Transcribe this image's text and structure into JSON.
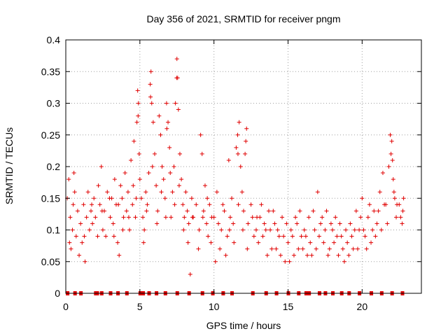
{
  "chart_data": {
    "type": "scatter",
    "title": "Day 356 of 2021, SRMTID for receiver pngm",
    "xlabel": "GPS time / hours",
    "ylabel": "SRMTID / TECUs",
    "xlim": [
      0,
      24
    ],
    "ylim": [
      0,
      0.4
    ],
    "x_ticks": [
      "0",
      "5",
      "10",
      "15",
      "20"
    ],
    "x_tick_values": [
      0,
      5,
      10,
      15,
      20
    ],
    "y_ticks": [
      "0",
      "0.05",
      "0.1",
      "0.15",
      "0.2",
      "0.25",
      "0.3",
      "0.35",
      "0.4"
    ],
    "y_tick_values": [
      0,
      0.05,
      0.1,
      0.15,
      0.2,
      0.25,
      0.3,
      0.35,
      0.4
    ],
    "grid": true,
    "marker": "+",
    "color": "#e00000",
    "series": [
      {
        "name": "SRMTID",
        "points": [
          [
            0.1,
            0.15
          ],
          [
            0.2,
            0.18
          ],
          [
            0.3,
            0.12
          ],
          [
            0.35,
            0.07
          ],
          [
            0.45,
            0.1
          ],
          [
            0.5,
            0.14
          ],
          [
            0.6,
            0.16
          ],
          [
            0.7,
            0.09
          ],
          [
            0.8,
            0.13
          ],
          [
            1.0,
            0.11
          ],
          [
            1.1,
            0.08
          ],
          [
            1.2,
            0.14
          ],
          [
            1.3,
            0.05
          ],
          [
            1.4,
            0.12
          ],
          [
            1.5,
            0.16
          ],
          [
            1.6,
            0.1
          ],
          [
            1.7,
            0.13
          ],
          [
            1.8,
            0.11
          ],
          [
            1.9,
            0.15
          ],
          [
            2.0,
            0.12
          ],
          [
            2.2,
            0.17
          ],
          [
            2.3,
            0.14
          ],
          [
            2.4,
            0.2
          ],
          [
            2.5,
            0.1
          ],
          [
            2.6,
            0.13
          ],
          [
            2.7,
            0.09
          ],
          [
            2.8,
            0.16
          ],
          [
            3.0,
            0.12
          ],
          [
            3.1,
            0.15
          ],
          [
            3.2,
            0.11
          ],
          [
            3.3,
            0.18
          ],
          [
            3.4,
            0.14
          ],
          [
            3.5,
            0.08
          ],
          [
            3.6,
            0.06
          ],
          [
            3.7,
            0.17
          ],
          [
            3.8,
            0.15
          ],
          [
            3.9,
            0.12
          ],
          [
            4.0,
            0.19
          ],
          [
            4.1,
            0.13
          ],
          [
            4.2,
            0.16
          ],
          [
            4.3,
            0.1
          ],
          [
            4.4,
            0.21
          ],
          [
            4.5,
            0.14
          ],
          [
            4.6,
            0.24
          ],
          [
            4.7,
            0.12
          ],
          [
            4.8,
            0.27
          ],
          [
            4.85,
            0.32
          ],
          [
            4.9,
            0.3
          ],
          [
            4.95,
            0.22
          ],
          [
            5.0,
            0.18
          ],
          [
            5.1,
            0.15
          ],
          [
            5.2,
            0.12
          ],
          [
            5.3,
            0.1
          ],
          [
            5.4,
            0.16
          ],
          [
            5.5,
            0.14
          ],
          [
            5.6,
            0.19
          ],
          [
            5.7,
            0.33
          ],
          [
            5.75,
            0.35
          ],
          [
            5.8,
            0.3
          ],
          [
            5.9,
            0.27
          ],
          [
            6.0,
            0.22
          ],
          [
            6.1,
            0.17
          ],
          [
            6.2,
            0.13
          ],
          [
            6.3,
            0.28
          ],
          [
            6.4,
            0.25
          ],
          [
            6.5,
            0.2
          ],
          [
            6.6,
            0.18
          ],
          [
            6.7,
            0.15
          ],
          [
            6.8,
            0.3
          ],
          [
            6.9,
            0.27
          ],
          [
            7.0,
            0.23
          ],
          [
            7.1,
            0.12
          ],
          [
            7.2,
            0.16
          ],
          [
            7.3,
            0.2
          ],
          [
            7.4,
            0.3
          ],
          [
            7.5,
            0.37
          ],
          [
            7.55,
            0.34
          ],
          [
            7.6,
            0.29
          ],
          [
            7.7,
            0.22
          ],
          [
            7.8,
            0.18
          ],
          [
            7.9,
            0.14
          ],
          [
            8.0,
            0.12
          ],
          [
            8.1,
            0.16
          ],
          [
            8.2,
            0.13
          ],
          [
            8.3,
            0.11
          ],
          [
            8.4,
            0.03
          ],
          [
            8.5,
            0.15
          ],
          [
            8.6,
            0.12
          ],
          [
            8.8,
            0.14
          ],
          [
            9.0,
            0.1
          ],
          [
            9.1,
            0.25
          ],
          [
            9.2,
            0.22
          ],
          [
            9.3,
            0.13
          ],
          [
            9.4,
            0.17
          ],
          [
            9.5,
            0.11
          ],
          [
            9.6,
            0.09
          ],
          [
            9.7,
            0.14
          ],
          [
            9.8,
            0.08
          ],
          [
            10.0,
            0.12
          ],
          [
            10.2,
            0.16
          ],
          [
            10.4,
            0.07
          ],
          [
            10.5,
            0.1
          ],
          [
            10.7,
            0.13
          ],
          [
            10.9,
            0.09
          ],
          [
            11.0,
            0.21
          ],
          [
            11.1,
            0.12
          ],
          [
            11.2,
            0.15
          ],
          [
            11.3,
            0.11
          ],
          [
            11.5,
            0.23
          ],
          [
            11.6,
            0.25
          ],
          [
            11.7,
            0.27
          ],
          [
            11.8,
            0.2
          ],
          [
            11.9,
            0.16
          ],
          [
            12.0,
            0.13
          ],
          [
            12.1,
            0.22
          ],
          [
            12.2,
            0.26
          ],
          [
            12.3,
            0.11
          ],
          [
            12.5,
            0.14
          ],
          [
            12.7,
            0.09
          ],
          [
            12.9,
            0.12
          ],
          [
            13.0,
            0.08
          ],
          [
            13.2,
            0.14
          ],
          [
            13.4,
            0.11
          ],
          [
            13.6,
            0.06
          ],
          [
            13.8,
            0.1
          ],
          [
            14.0,
            0.13
          ],
          [
            14.2,
            0.07
          ],
          [
            14.4,
            0.09
          ],
          [
            14.6,
            0.12
          ],
          [
            14.8,
            0.05
          ],
          [
            15.0,
            0.08
          ],
          [
            15.2,
            0.1
          ],
          [
            15.4,
            0.06
          ],
          [
            15.6,
            0.11
          ],
          [
            15.8,
            0.13
          ],
          [
            16.0,
            0.07
          ],
          [
            16.2,
            0.09
          ],
          [
            16.4,
            0.12
          ],
          [
            16.6,
            0.06
          ],
          [
            16.8,
            0.1
          ],
          [
            17.0,
            0.16
          ],
          [
            17.2,
            0.11
          ],
          [
            17.4,
            0.08
          ],
          [
            17.6,
            0.13
          ],
          [
            17.8,
            0.07
          ],
          [
            18.0,
            0.1
          ],
          [
            18.2,
            0.12
          ],
          [
            18.4,
            0.06
          ],
          [
            18.6,
            0.09
          ],
          [
            18.8,
            0.05
          ],
          [
            19.0,
            0.08
          ],
          [
            19.2,
            0.11
          ],
          [
            19.4,
            0.07
          ],
          [
            19.6,
            0.13
          ],
          [
            19.8,
            0.1
          ],
          [
            20.0,
            0.15
          ],
          [
            20.2,
            0.09
          ],
          [
            20.4,
            0.12
          ],
          [
            20.6,
            0.08
          ],
          [
            20.8,
            0.13
          ],
          [
            21.0,
            0.11
          ],
          [
            21.2,
            0.16
          ],
          [
            21.4,
            0.19
          ],
          [
            21.6,
            0.14
          ],
          [
            21.8,
            0.2
          ],
          [
            21.9,
            0.25
          ],
          [
            22.0,
            0.24
          ],
          [
            22.1,
            0.18
          ],
          [
            22.2,
            0.15
          ],
          [
            22.3,
            0.12
          ],
          [
            22.5,
            0.14
          ],
          [
            22.7,
            0.11
          ],
          [
            22.8,
            0.15
          ],
          [
            0.25,
            0.08
          ],
          [
            0.55,
            0.19
          ],
          [
            0.9,
            0.06
          ],
          [
            1.25,
            0.09
          ],
          [
            1.75,
            0.14
          ],
          [
            2.15,
            0.09
          ],
          [
            2.45,
            0.13
          ],
          [
            2.95,
            0.15
          ],
          [
            3.25,
            0.09
          ],
          [
            3.55,
            0.14
          ],
          [
            3.85,
            0.1
          ],
          [
            4.25,
            0.12
          ],
          [
            4.55,
            0.17
          ],
          [
            4.75,
            0.15
          ],
          [
            5.25,
            0.08
          ],
          [
            5.45,
            0.13
          ],
          [
            5.85,
            0.2
          ],
          [
            6.15,
            0.11
          ],
          [
            6.45,
            0.16
          ],
          [
            6.75,
            0.12
          ],
          [
            7.05,
            0.19
          ],
          [
            7.35,
            0.14
          ],
          [
            7.65,
            0.17
          ],
          [
            7.95,
            0.1
          ],
          [
            8.25,
            0.08
          ],
          [
            8.55,
            0.12
          ],
          [
            8.95,
            0.07
          ],
          [
            9.25,
            0.12
          ],
          [
            9.55,
            0.15
          ],
          [
            9.85,
            0.12
          ],
          [
            10.1,
            0.05
          ],
          [
            10.3,
            0.11
          ],
          [
            10.6,
            0.14
          ],
          [
            10.8,
            0.06
          ],
          [
            11.05,
            0.1
          ],
          [
            11.35,
            0.08
          ],
          [
            11.65,
            0.14
          ],
          [
            11.95,
            0.1
          ],
          [
            12.25,
            0.07
          ],
          [
            12.6,
            0.12
          ],
          [
            12.85,
            0.1
          ],
          [
            13.1,
            0.12
          ],
          [
            13.3,
            0.09
          ],
          [
            13.5,
            0.1
          ],
          [
            13.7,
            0.13
          ],
          [
            13.9,
            0.07
          ],
          [
            14.1,
            0.11
          ],
          [
            14.3,
            0.1
          ],
          [
            14.5,
            0.06
          ],
          [
            14.7,
            0.09
          ],
          [
            14.9,
            0.11
          ],
          [
            15.1,
            0.05
          ],
          [
            15.3,
            0.09
          ],
          [
            15.5,
            0.12
          ],
          [
            15.7,
            0.07
          ],
          [
            15.9,
            0.09
          ],
          [
            16.1,
            0.1
          ],
          [
            16.3,
            0.06
          ],
          [
            16.5,
            0.08
          ],
          [
            16.7,
            0.13
          ],
          [
            16.9,
            0.07
          ],
          [
            17.1,
            0.09
          ],
          [
            17.3,
            0.12
          ],
          [
            17.5,
            0.1
          ],
          [
            17.7,
            0.06
          ],
          [
            17.9,
            0.11
          ],
          [
            18.1,
            0.08
          ],
          [
            18.3,
            0.09
          ],
          [
            18.5,
            0.11
          ],
          [
            18.7,
            0.07
          ],
          [
            18.9,
            0.1
          ],
          [
            19.1,
            0.06
          ],
          [
            19.3,
            0.09
          ],
          [
            19.5,
            0.1
          ],
          [
            19.7,
            0.07
          ],
          [
            19.9,
            0.12
          ],
          [
            20.1,
            0.1
          ],
          [
            20.3,
            0.07
          ],
          [
            20.5,
            0.14
          ],
          [
            20.7,
            0.1
          ],
          [
            20.9,
            0.09
          ],
          [
            21.1,
            0.13
          ],
          [
            21.3,
            0.1
          ],
          [
            21.5,
            0.14
          ],
          [
            21.7,
            0.11
          ],
          [
            22.05,
            0.21
          ],
          [
            22.15,
            0.16
          ],
          [
            22.35,
            0.14
          ],
          [
            22.6,
            0.12
          ],
          [
            22.75,
            0.13
          ],
          [
            4.88,
            0.28
          ],
          [
            5.72,
            0.31
          ],
          [
            7.48,
            0.34
          ],
          [
            6.82,
            0.26
          ],
          [
            11.62,
            0.22
          ],
          [
            12.15,
            0.24
          ],
          [
            21.95,
            0.22
          ]
        ]
      }
    ],
    "baseline_markers_x": [
      0.1,
      0.6,
      1.0,
      2.0,
      2.1,
      2.4,
      3.0,
      3.5,
      4.1,
      5.0,
      5.2,
      5.6,
      6.1,
      6.7,
      7.5,
      8.3,
      9.2,
      9.9,
      10.6,
      11.2,
      12.6,
      13.5,
      14.2,
      15.0,
      15.7,
      16.2,
      16.4,
      17.1,
      17.5,
      18.0,
      18.6,
      19.1,
      19.8,
      20.6,
      21.3,
      22.0,
      22.7
    ]
  }
}
